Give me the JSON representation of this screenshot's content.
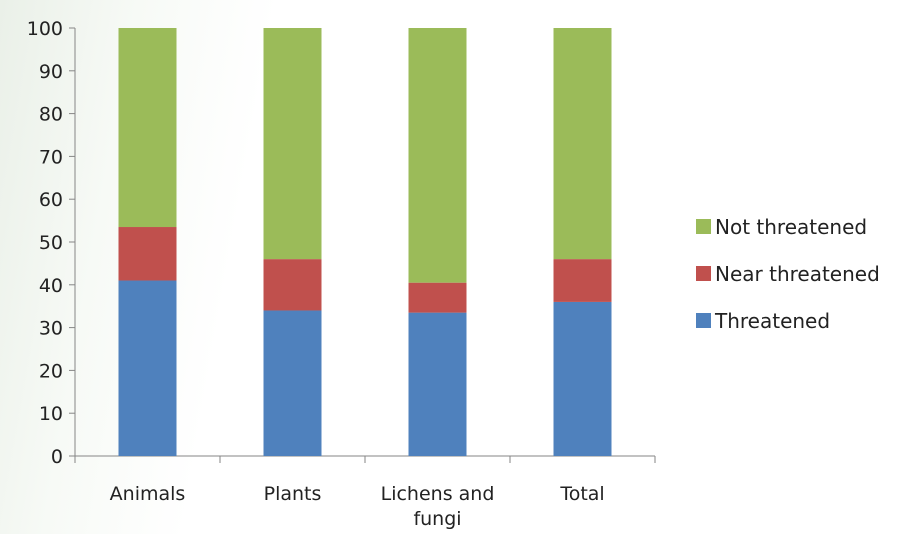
{
  "chart_data": {
    "type": "bar",
    "stacked": true,
    "categories": [
      [
        "Animals"
      ],
      [
        "Plants"
      ],
      [
        "Lichens and",
        "fungi"
      ],
      [
        "Total"
      ]
    ],
    "series": [
      {
        "name": "Threatened",
        "color": "#4f81bd",
        "values": [
          41,
          34,
          33.5,
          36
        ]
      },
      {
        "name": "Near threatened",
        "color": "#c0504d",
        "values": [
          12.5,
          12,
          7,
          10
        ]
      },
      {
        "name": "Not threatened",
        "color": "#9bbb59",
        "values": [
          46.5,
          54,
          59.5,
          54
        ]
      }
    ],
    "ylim": [
      0,
      100
    ],
    "yticks": [
      0,
      10,
      20,
      30,
      40,
      50,
      60,
      70,
      80,
      90,
      100
    ],
    "legend_position": "right",
    "legend_order": [
      "Not threatened",
      "Near threatened",
      "Threatened"
    ],
    "grid": false
  }
}
